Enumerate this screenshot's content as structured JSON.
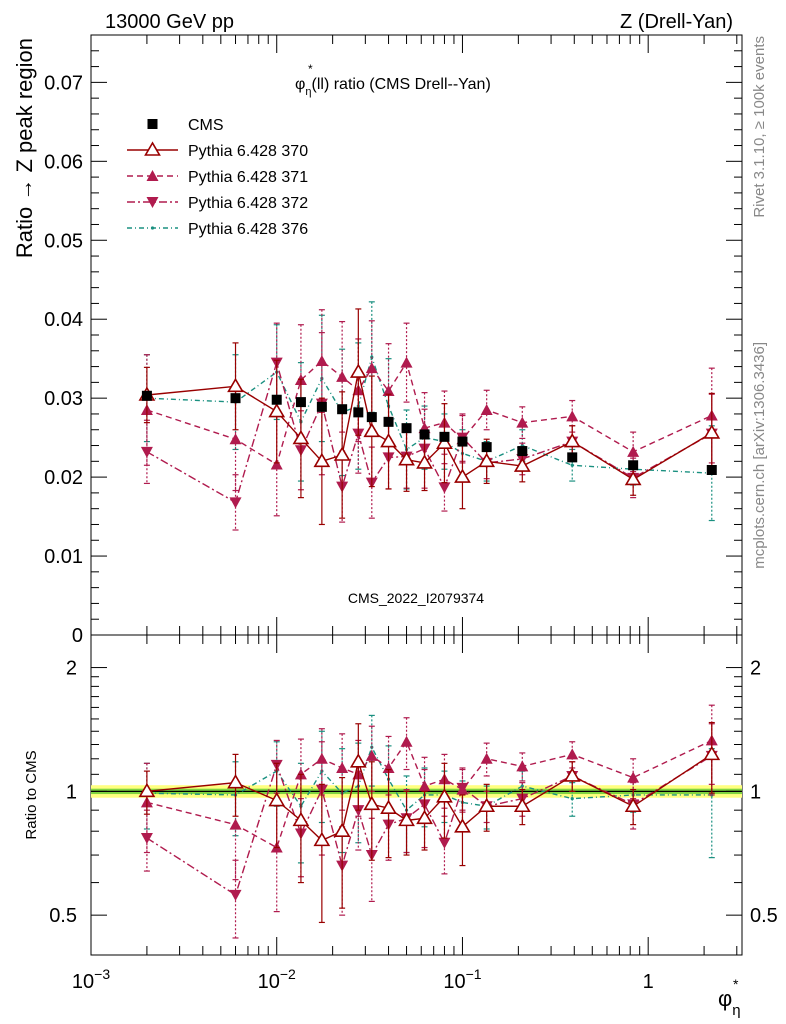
{
  "header": {
    "left": "13000 GeV pp",
    "right": "Z (Drell-Yan)"
  },
  "side_labels": {
    "rivet": "Rivet 3.1.10, ≥ 100k events",
    "mcplots": "mcplots.cern.ch [arXiv:1306.3436]"
  },
  "colors": {
    "cms": "#000000",
    "p370": "#990000",
    "p371": "#b01b4e",
    "p372": "#b01b4e",
    "p376": "#1a9080",
    "band_inner": "#7fd440",
    "band_outer": "#ffff80"
  },
  "chart_data": [
    {
      "type": "scatter",
      "title_parts": {
        "phi": "φ",
        "sup": "*",
        "sub": "η",
        "rest": "(ll) ratio (CMS Drell--Yan)"
      },
      "watermark": "CMS_2022_I2079374",
      "ylabel": "Ratio → Z peak region",
      "x_scale": "log",
      "xlim": [
        0.001,
        3.2
      ],
      "ylim": [
        0,
        0.076
      ],
      "y_ticks": [
        "0",
        "0.01",
        "0.02",
        "0.03",
        "0.04",
        "0.05",
        "0.06",
        "0.07"
      ],
      "legend_position": "top-left",
      "x": [
        0.002,
        0.006,
        0.01,
        0.0135,
        0.0175,
        0.0225,
        0.0275,
        0.0325,
        0.04,
        0.05,
        0.0625,
        0.08,
        0.1,
        0.135,
        0.21,
        0.39,
        0.83,
        2.2
      ],
      "series": [
        {
          "name": "CMS",
          "style": "data",
          "values": [
            0.0303,
            0.03,
            0.0298,
            0.0295,
            0.0289,
            0.0286,
            0.0282,
            0.0276,
            0.027,
            0.0262,
            0.0254,
            0.0251,
            0.0245,
            0.0238,
            0.0233,
            0.0225,
            0.0215,
            0.0209
          ],
          "errors": [
            0.0004,
            0.0004,
            0.0004,
            0.0004,
            0.0004,
            0.0004,
            0.0004,
            0.0004,
            0.0004,
            0.0004,
            0.0004,
            0.0004,
            0.0004,
            0.0004,
            0.0004,
            0.0004,
            0.0004,
            0.0004
          ]
        },
        {
          "name": "Pythia 6.428 370",
          "style": "solid-open-triangle",
          "values": [
            0.0304,
            0.0315,
            0.0283,
            0.0249,
            0.022,
            0.0228,
            0.0333,
            0.0258,
            0.0245,
            0.0222,
            0.0218,
            0.0243,
            0.02,
            0.022,
            0.0214,
            0.0245,
            0.0197,
            0.0256
          ],
          "errors": [
            0.0035,
            0.0055,
            0.0065,
            0.0075,
            0.008,
            0.008,
            0.008,
            0.007,
            0.006,
            0.004,
            0.0035,
            0.005,
            0.004,
            0.0028,
            0.002,
            0.002,
            0.002,
            0.005
          ]
        },
        {
          "name": "Pythia 6.428 371",
          "style": "dashed-up-triangle",
          "values": [
            0.0285,
            0.0248,
            0.0216,
            0.0323,
            0.0347,
            0.0327,
            0.031,
            0.0338,
            0.0309,
            0.0345,
            0.0262,
            0.0269,
            0.0248,
            0.0285,
            0.0269,
            0.0277,
            0.0232,
            0.0278
          ],
          "errors": [
            0.007,
            0.0065,
            0.0065,
            0.007,
            0.0065,
            0.007,
            0.0065,
            0.006,
            0.006,
            0.005,
            0.0045,
            0.004,
            0.003,
            0.0025,
            0.002,
            0.002,
            0.0025,
            0.006
          ]
        },
        {
          "name": "Pythia 6.428 372",
          "style": "dashdot-down-triangle",
          "values": [
            0.0232,
            0.0168,
            0.0345,
            0.0234,
            0.0293,
            0.0188,
            0.0255,
            0.0193,
            0.0225,
            0.0226,
            0.0236,
            0.0187,
            0.025,
            0.0218,
            0.0223,
            0.0245,
            0.0199,
            0.0255
          ],
          "errors": [
            0.004,
            0.0035,
            0.005,
            0.005,
            0.009,
            0.0045,
            0.005,
            0.0045,
            0.004,
            0.004,
            0.005,
            0.003,
            0.003,
            0.002,
            0.002,
            0.002,
            0.0025,
            0.005
          ]
        },
        {
          "name": "Pythia 6.428 376",
          "style": "dashdot-dots",
          "values": [
            0.03,
            0.0295,
            0.0333,
            0.027,
            0.0325,
            0.0282,
            0.029,
            0.0352,
            0.029,
            0.0235,
            0.025,
            0.0245,
            0.023,
            0.022,
            0.024,
            0.0215,
            0.021,
            0.0205
          ],
          "errors": [
            0.0055,
            0.006,
            0.006,
            0.0075,
            0.008,
            0.008,
            0.008,
            0.007,
            0.006,
            0.005,
            0.004,
            0.0035,
            0.003,
            0.0025,
            0.002,
            0.002,
            0.002,
            0.006
          ]
        }
      ]
    },
    {
      "type": "scatter",
      "ylabel": "Ratio to CMS",
      "x_scale": "log",
      "xlim": [
        0.001,
        3.2
      ],
      "ylim": [
        0.4,
        2.4
      ],
      "y_scale": "log",
      "y_ticks": [
        "0.5",
        "1",
        "2"
      ],
      "x_ticks": [
        {
          "base": "10",
          "exp": "−3"
        },
        {
          "base": "10",
          "exp": "−2"
        },
        {
          "base": "10",
          "exp": "−1"
        },
        {
          "base": "1",
          "exp": ""
        }
      ],
      "xlabel_parts": {
        "phi": "φ",
        "sup": "*",
        "sub": "η"
      },
      "ref_line": 1,
      "band_inner": 0.015,
      "band_outer": 0.035,
      "x": [
        0.002,
        0.006,
        0.01,
        0.0135,
        0.0175,
        0.0225,
        0.0275,
        0.0325,
        0.04,
        0.05,
        0.0625,
        0.08,
        0.1,
        0.135,
        0.21,
        0.39,
        0.83,
        2.2
      ],
      "series": [
        {
          "name": "Pythia 6.428 370",
          "values": [
            1.0,
            1.05,
            0.95,
            0.85,
            0.76,
            0.8,
            1.18,
            0.93,
            0.91,
            0.85,
            0.86,
            0.97,
            0.82,
            0.92,
            0.92,
            1.09,
            0.92,
            1.23
          ],
          "errors": [
            0.12,
            0.18,
            0.22,
            0.25,
            0.28,
            0.28,
            0.28,
            0.25,
            0.22,
            0.15,
            0.14,
            0.2,
            0.16,
            0.12,
            0.09,
            0.09,
            0.09,
            0.24
          ]
        },
        {
          "name": "Pythia 6.428 371",
          "values": [
            0.94,
            0.83,
            0.73,
            1.1,
            1.2,
            1.14,
            1.1,
            1.22,
            1.14,
            1.32,
            1.03,
            1.07,
            1.01,
            1.2,
            1.15,
            1.23,
            1.08,
            1.33
          ],
          "errors": [
            0.23,
            0.22,
            0.22,
            0.24,
            0.22,
            0.24,
            0.23,
            0.22,
            0.22,
            0.19,
            0.18,
            0.16,
            0.12,
            0.11,
            0.09,
            0.09,
            0.12,
            0.29
          ]
        },
        {
          "name": "Pythia 6.428 372",
          "values": [
            0.77,
            0.56,
            1.16,
            0.79,
            1.01,
            0.66,
            0.9,
            0.7,
            0.83,
            0.86,
            0.93,
            0.75,
            1.02,
            0.92,
            0.96,
            1.09,
            0.93,
            1.22
          ],
          "errors": [
            0.13,
            0.12,
            0.17,
            0.17,
            0.31,
            0.16,
            0.18,
            0.16,
            0.15,
            0.15,
            0.2,
            0.12,
            0.12,
            0.08,
            0.09,
            0.09,
            0.12,
            0.24
          ]
        },
        {
          "name": "Pythia 6.428 376",
          "values": [
            0.99,
            0.98,
            1.12,
            0.92,
            1.12,
            0.99,
            1.03,
            1.28,
            1.07,
            0.9,
            0.98,
            0.98,
            0.94,
            0.92,
            1.03,
            0.96,
            0.98,
            0.98
          ],
          "errors": [
            0.18,
            0.2,
            0.2,
            0.25,
            0.28,
            0.28,
            0.28,
            0.25,
            0.22,
            0.19,
            0.16,
            0.14,
            0.12,
            0.11,
            0.09,
            0.09,
            0.09,
            0.29
          ]
        }
      ]
    }
  ]
}
